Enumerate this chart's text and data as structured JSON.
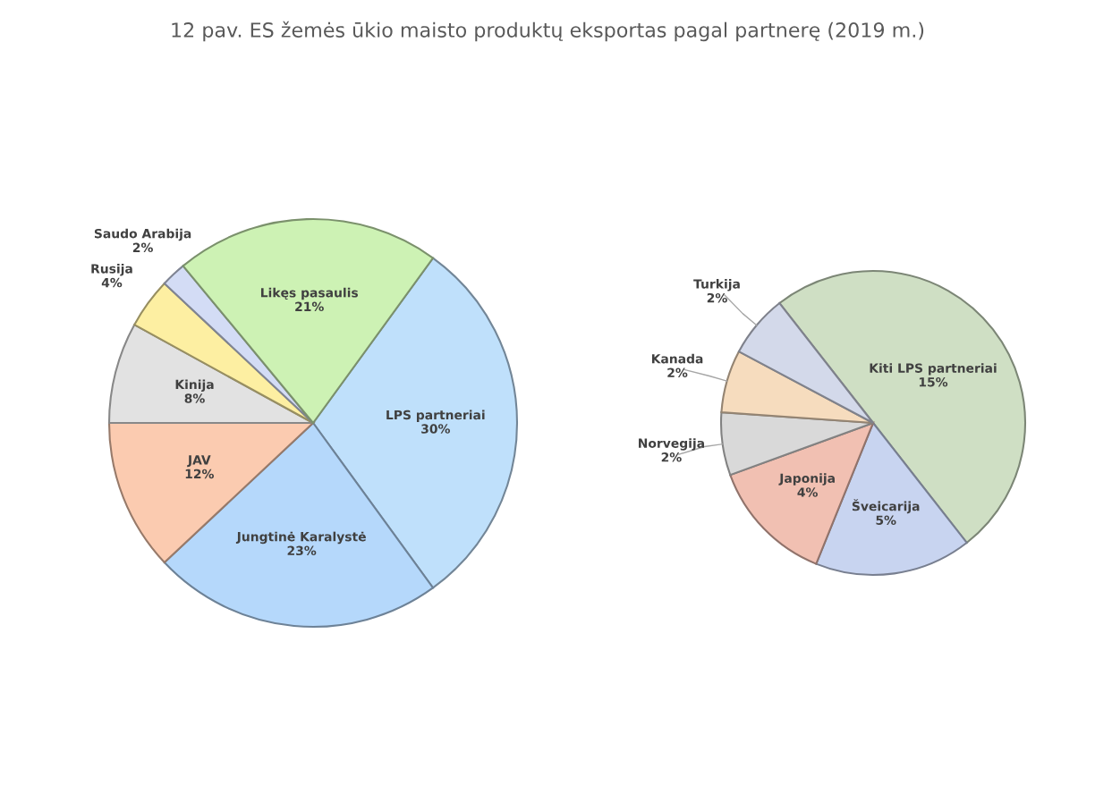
{
  "chart_data": [
    {
      "type": "pie",
      "title": "12 pav. ES žemės ūkio maisto produktų eksportas pagal partnerę (2019 m.)",
      "categories": [
        "LPS partneriai",
        "Jungtinė Karalystė",
        "JAV",
        "Kinija",
        "Rusija",
        "Saudo Arabija",
        "Likęs pasaulis"
      ],
      "values": [
        30,
        23,
        12,
        8,
        4,
        2,
        21
      ],
      "value_labels": [
        "30%",
        "23%",
        "12%",
        "8%",
        "4%",
        "2%",
        "21%"
      ],
      "colors": [
        "#bfe0fb",
        "#b5d8fb",
        "#fbcbb0",
        "#e2e2e2",
        "#fdefa2",
        "#d3dcf5",
        "#cdf2b4"
      ]
    },
    {
      "type": "pie",
      "categories": [
        "Kiti LPS partneriai",
        "Šveicarija",
        "Japonija",
        "Norvegija",
        "Kanada",
        "Turkija"
      ],
      "values": [
        15,
        5,
        4,
        2,
        2,
        2
      ],
      "value_labels": [
        "15%",
        "5%",
        "4%",
        "2%",
        "2%",
        "2%"
      ],
      "colors": [
        "#cfdfc4",
        "#c8d4f0",
        "#f1c0b2",
        "#d9d9d9",
        "#f6dcbe",
        "#d3d9ea"
      ]
    }
  ]
}
